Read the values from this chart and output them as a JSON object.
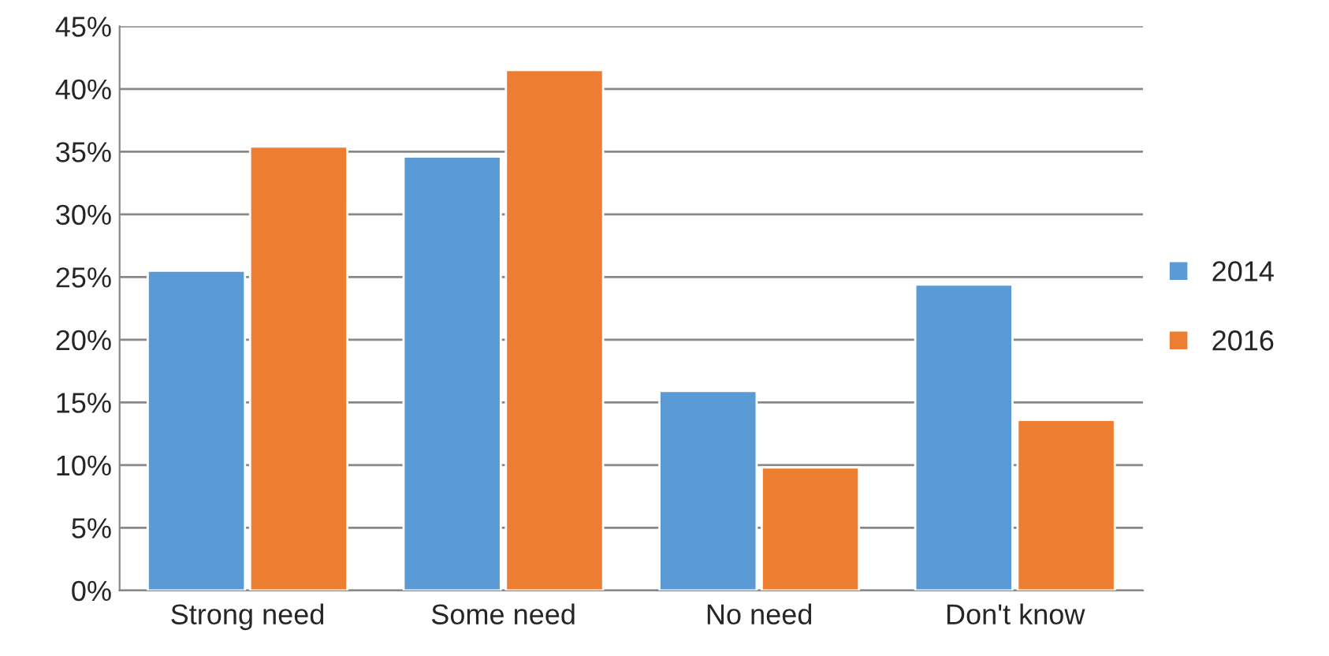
{
  "chart_data": {
    "type": "bar",
    "categories": [
      "Strong need",
      "Some need",
      "No need",
      "Don't know"
    ],
    "series": [
      {
        "name": "2014",
        "color": "#5b9bd5",
        "values": [
          25.5,
          34.6,
          15.9,
          24.4
        ]
      },
      {
        "name": "2016",
        "color": "#ed7d31",
        "values": [
          35.4,
          41.5,
          9.8,
          13.6
        ]
      }
    ],
    "ylim": [
      0,
      45
    ],
    "yticks": [
      {
        "value": 0,
        "label": "0%"
      },
      {
        "value": 5,
        "label": "5%"
      },
      {
        "value": 10,
        "label": "10%"
      },
      {
        "value": 15,
        "label": "15%"
      },
      {
        "value": 20,
        "label": "20%"
      },
      {
        "value": 25,
        "label": "25%"
      },
      {
        "value": 30,
        "label": "30%"
      },
      {
        "value": 35,
        "label": "35%"
      },
      {
        "value": 40,
        "label": "40%"
      },
      {
        "value": 45,
        "label": "45%"
      }
    ],
    "grid": "y",
    "legend": "right"
  }
}
